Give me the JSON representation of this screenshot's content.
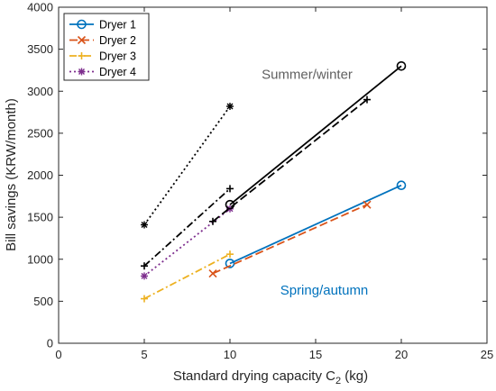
{
  "chart_data": {
    "type": "line",
    "xlabel": "Standard drying capacity C",
    "xlabel_subscript": "2",
    "xlabel_suffix": " (kg)",
    "ylabel": "Bill savings (KRW/month)",
    "xlim": [
      0,
      25
    ],
    "ylim": [
      0,
      4000
    ],
    "xticks": [
      "0",
      "5",
      "10",
      "15",
      "20",
      "25"
    ],
    "yticks": [
      "0",
      "500",
      "1000",
      "1500",
      "2000",
      "2500",
      "3000",
      "3500",
      "4000"
    ],
    "xtick_values": [
      0,
      5,
      10,
      15,
      20,
      25
    ],
    "ytick_values": [
      0,
      500,
      1000,
      1500,
      2000,
      2500,
      3000,
      3500,
      4000
    ],
    "grid": false,
    "legend_position": "top-left",
    "legend": [
      {
        "name": "Dryer 1",
        "color": "#0072BD",
        "dash": "solid",
        "marker": "circle"
      },
      {
        "name": "Dryer 2",
        "color": "#D95319",
        "dash": "dashed",
        "marker": "x"
      },
      {
        "name": "Dryer 3",
        "color": "#EDB120",
        "dash": "dashdot",
        "marker": "plus"
      },
      {
        "name": "Dryer 4",
        "color": "#7E2F8E",
        "dash": "dotted",
        "marker": "star"
      }
    ],
    "annotations": [
      {
        "text": "Summer/winter",
        "x": 14.5,
        "y": 3150,
        "color": "#606060"
      },
      {
        "text": "Spring/autumn",
        "x": 15.5,
        "y": 580,
        "color": "#0072BD"
      }
    ],
    "series": [
      {
        "x": [
          10,
          20
        ],
        "y": [
          950,
          1880
        ],
        "color": "#0072BD",
        "dash": "solid",
        "marker": "circle"
      },
      {
        "x": [
          9,
          18
        ],
        "y": [
          830,
          1650
        ],
        "color": "#D95319",
        "dash": "dashed",
        "marker": "x"
      },
      {
        "x": [
          5,
          10
        ],
        "y": [
          530,
          1060
        ],
        "color": "#EDB120",
        "dash": "dashdot",
        "marker": "plus"
      },
      {
        "x": [
          5,
          10
        ],
        "y": [
          800,
          1600
        ],
        "color": "#7E2F8E",
        "dash": "dotted",
        "marker": "star"
      },
      {
        "x": [
          10,
          20
        ],
        "y": [
          1650,
          3300
        ],
        "color": "#000000",
        "dash": "solid",
        "marker": "circle"
      },
      {
        "x": [
          9,
          18
        ],
        "y": [
          1450,
          2900
        ],
        "color": "#000000",
        "dash": "dashed",
        "marker": "plus"
      },
      {
        "x": [
          5,
          10
        ],
        "y": [
          920,
          1840
        ],
        "color": "#000000",
        "dash": "dashdot",
        "marker": "plus"
      },
      {
        "x": [
          5,
          10
        ],
        "y": [
          1410,
          2820
        ],
        "color": "#000000",
        "dash": "dotted",
        "marker": "star"
      }
    ]
  }
}
